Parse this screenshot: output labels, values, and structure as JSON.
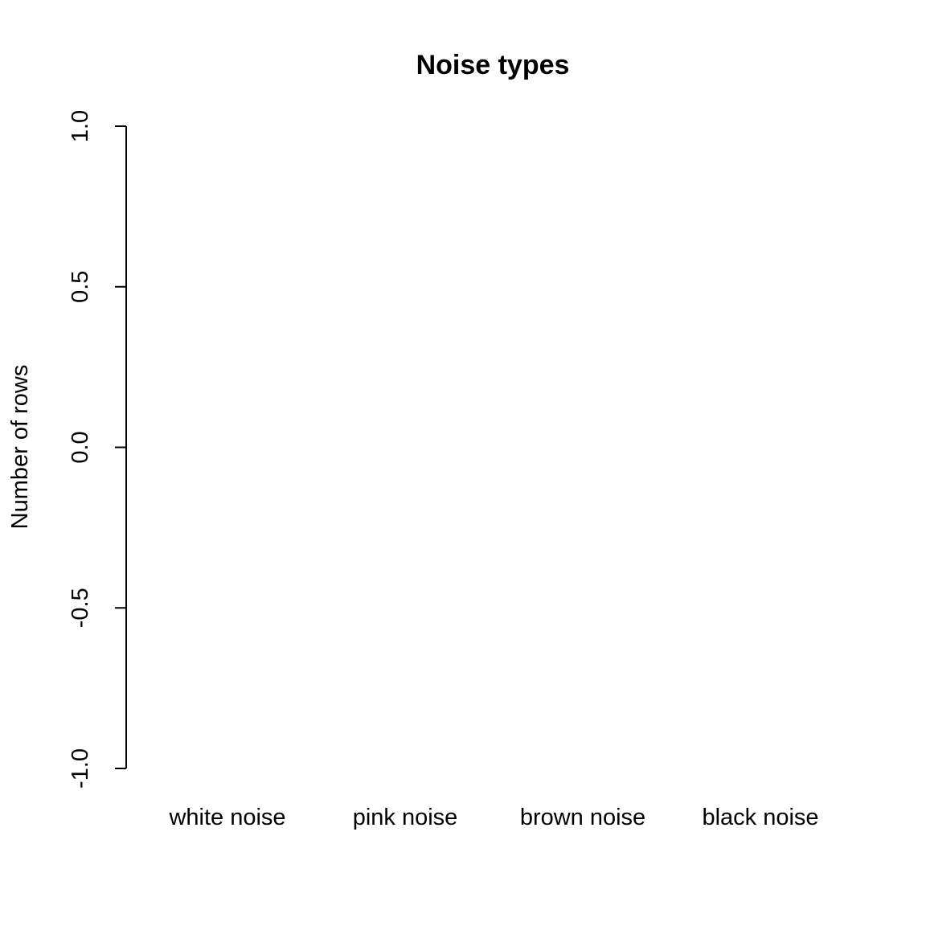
{
  "chart_data": {
    "type": "bar",
    "title": "Noise types",
    "xlabel": "",
    "ylabel": "Number of rows",
    "categories": [
      "white noise",
      "pink noise",
      "brown noise",
      "black noise"
    ],
    "values": [
      0,
      0,
      0,
      0
    ],
    "ylim": [
      -1.0,
      1.0
    ],
    "yticks": [
      -1.0,
      -0.5,
      0.0,
      0.5,
      1.0
    ],
    "ytick_labels": [
      "-1.0",
      "-0.5",
      "0.0",
      "0.5",
      "1.0"
    ],
    "grid": false,
    "legend": "none"
  }
}
